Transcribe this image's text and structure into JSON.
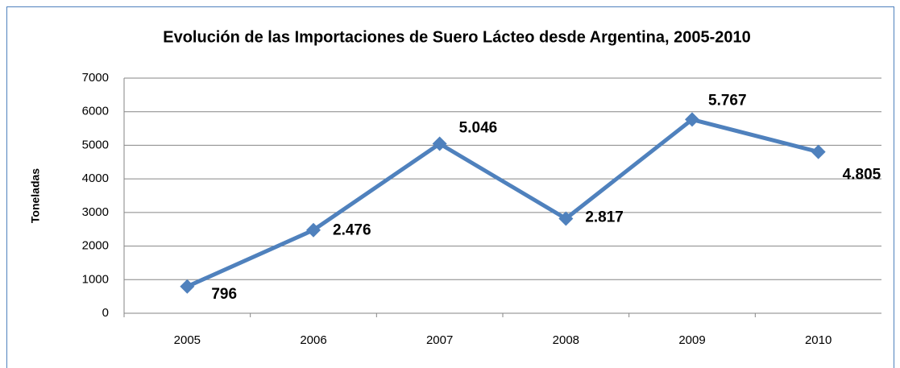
{
  "chart_data": {
    "type": "line",
    "title": "Evolución de las Importaciones de Suero Lácteo desde Argentina, 2005-2010",
    "y_label": "Toneladas",
    "categories": [
      "2005",
      "2006",
      "2007",
      "2008",
      "2009",
      "2010"
    ],
    "series": [
      {
        "name": "Toneladas",
        "color": "#4f81bd",
        "values": [
          796,
          2476,
          5046,
          2817,
          5767,
          4805
        ],
        "value_labels": [
          "796",
          "2.476",
          "5.046",
          "2.817",
          "5.767",
          "4.805"
        ]
      }
    ],
    "ylim": [
      0,
      7000
    ],
    "yticks": [
      0,
      1000,
      2000,
      3000,
      4000,
      5000,
      6000,
      7000
    ],
    "grid": true
  }
}
